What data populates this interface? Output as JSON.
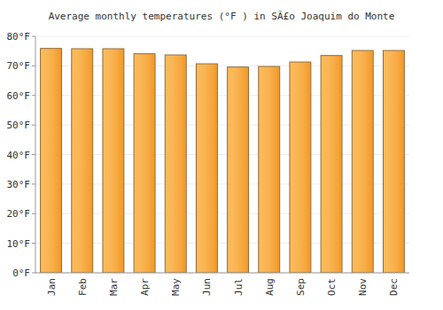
{
  "chart_data": {
    "type": "bar",
    "title": "Average monthly temperatures (°F ) in SÃ£o Joaquim do Monte",
    "categories": [
      "Jan",
      "Feb",
      "Mar",
      "Apr",
      "May",
      "Jun",
      "Jul",
      "Aug",
      "Sep",
      "Oct",
      "Nov",
      "Dec"
    ],
    "values": [
      75.9,
      75.8,
      75.8,
      74.1,
      73.7,
      70.7,
      69.6,
      69.8,
      71.3,
      73.5,
      75.2,
      75.2
    ],
    "color": "#fbae3c",
    "ylim": [
      0,
      80
    ],
    "yticks": [
      {
        "value": 0,
        "label": "0°F"
      },
      {
        "value": 10,
        "label": "10°F"
      },
      {
        "value": 20,
        "label": "20°F"
      },
      {
        "value": 30,
        "label": "30°F"
      },
      {
        "value": 40,
        "label": "40°F"
      },
      {
        "value": 50,
        "label": "50°F"
      },
      {
        "value": 60,
        "label": "60°F"
      },
      {
        "value": 70,
        "label": "70°F"
      },
      {
        "value": 80,
        "label": "80°F"
      }
    ],
    "grid": true
  }
}
